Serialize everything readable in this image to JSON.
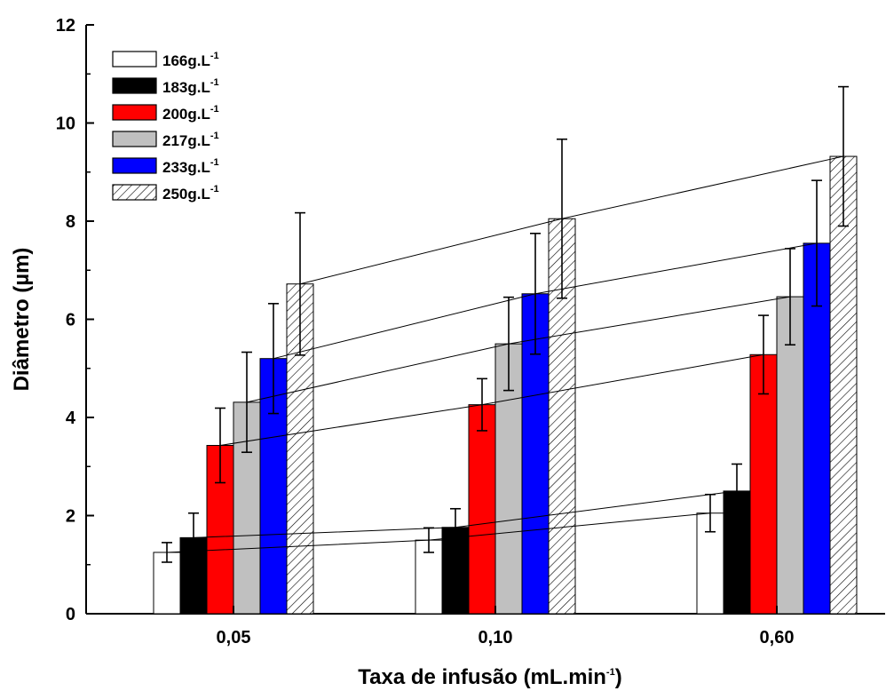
{
  "chart_data": {
    "type": "bar",
    "categories": [
      "0,05",
      "0,10",
      "0,60"
    ],
    "xlabel": "Taxa de infusão (mL.min",
    "xlabel_sup": "-1",
    "xlabel_end": ")",
    "ylabel": "Diâmetro (µm)",
    "ylim": [
      0,
      12
    ],
    "yticks": [
      "0",
      "2",
      "4",
      "6",
      "8",
      "10",
      "12"
    ],
    "legend_position": "top-left",
    "series": [
      {
        "name": "166g.L",
        "name_sup": "-1",
        "fill": "#ffffff",
        "pattern": "none",
        "values": [
          1.25,
          1.5,
          2.05
        ],
        "errors": [
          0.2,
          0.25,
          0.38
        ]
      },
      {
        "name": "183g.L",
        "name_sup": "-1",
        "fill": "#000000",
        "pattern": "none",
        "values": [
          1.55,
          1.76,
          2.5
        ],
        "errors": [
          0.5,
          0.38,
          0.55
        ]
      },
      {
        "name": "200g.L",
        "name_sup": "-1",
        "fill": "#ff0000",
        "pattern": "none",
        "values": [
          3.43,
          4.26,
          5.28
        ],
        "errors": [
          0.76,
          0.53,
          0.8
        ]
      },
      {
        "name": "217g.L",
        "name_sup": "-1",
        "fill": "#c0c0c0",
        "pattern": "none",
        "values": [
          4.31,
          5.5,
          6.46
        ],
        "errors": [
          1.02,
          0.95,
          0.98
        ]
      },
      {
        "name": "233g.L",
        "name_sup": "-1",
        "fill": "#0000ff",
        "pattern": "none",
        "values": [
          5.2,
          6.52,
          7.55
        ],
        "errors": [
          1.12,
          1.23,
          1.28
        ]
      },
      {
        "name": "250g.L",
        "name_sup": "-1",
        "fill": "#ffffff",
        "pattern": "hatch",
        "values": [
          6.72,
          8.05,
          9.32
        ],
        "errors": [
          1.45,
          1.62,
          1.42
        ]
      }
    ],
    "trend_lines": true
  }
}
